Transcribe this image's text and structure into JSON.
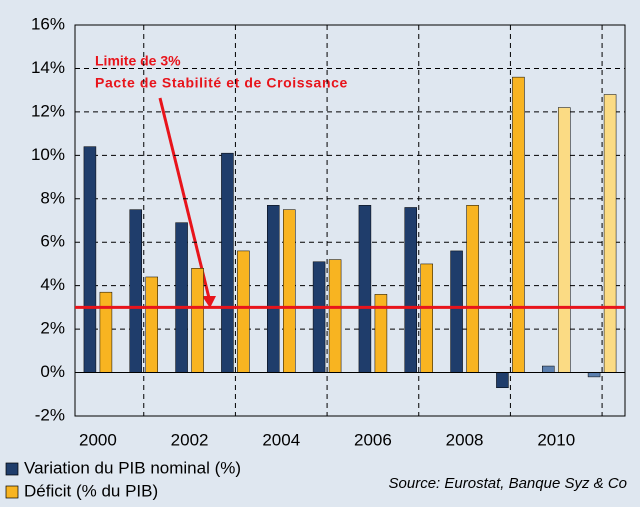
{
  "chart_data": {
    "type": "bar",
    "annotation": [
      "Limite de 3%",
      "Pacte de Stabilité et de Croissance"
    ],
    "source": "Source: Eurostat, Banque Syz & Co",
    "categories": [
      "2000",
      null,
      "2002",
      null,
      "2004",
      null,
      "2006",
      null,
      "2008",
      null,
      "2010",
      null
    ],
    "series": [
      {
        "name": "Variation du PIB nominal (%)",
        "color": "#1f3d6b",
        "colors": [
          "#1f3d6b",
          "#1f3d6b",
          "#1f3d6b",
          "#1f3d6b",
          "#1f3d6b",
          "#1f3d6b",
          "#1f3d6b",
          "#1f3d6b",
          "#1f3d6b",
          "#1f3d6b",
          "#5b7fae",
          "#5b7fae"
        ],
        "values": [
          10.4,
          7.5,
          6.9,
          10.1,
          7.7,
          5.1,
          7.7,
          7.6,
          5.6,
          -0.7,
          0.3,
          -0.2
        ]
      },
      {
        "name": "Déficit (% du PIB)",
        "color": "#f8b421",
        "colors": [
          "#f8b421",
          "#f8b421",
          "#f8b421",
          "#f8b421",
          "#f8b421",
          "#f8b421",
          "#f8b421",
          "#f8b421",
          "#f8b421",
          "#f8b421",
          "#fbdb84",
          "#fbdb84"
        ],
        "values": [
          3.7,
          4.4,
          4.8,
          5.6,
          7.5,
          5.2,
          3.6,
          5.0,
          7.7,
          13.6,
          12.2,
          12.8
        ]
      }
    ],
    "reference_line": {
      "value": 3,
      "color": "#e8141b"
    },
    "ylim": [
      -2,
      16
    ],
    "yticks": [
      {
        "value": -2,
        "label": "-2%"
      },
      {
        "value": 0,
        "label": "0%"
      },
      {
        "value": 2,
        "label": "2%"
      },
      {
        "value": 4,
        "label": "4%"
      },
      {
        "value": 6,
        "label": "6%"
      },
      {
        "value": 8,
        "label": "8%"
      },
      {
        "value": 10,
        "label": "10%"
      },
      {
        "value": 12,
        "label": "12%"
      },
      {
        "value": 14,
        "label": "14%"
      },
      {
        "value": 16,
        "label": "16%"
      }
    ],
    "grid": true,
    "legend": "bottom-left"
  }
}
